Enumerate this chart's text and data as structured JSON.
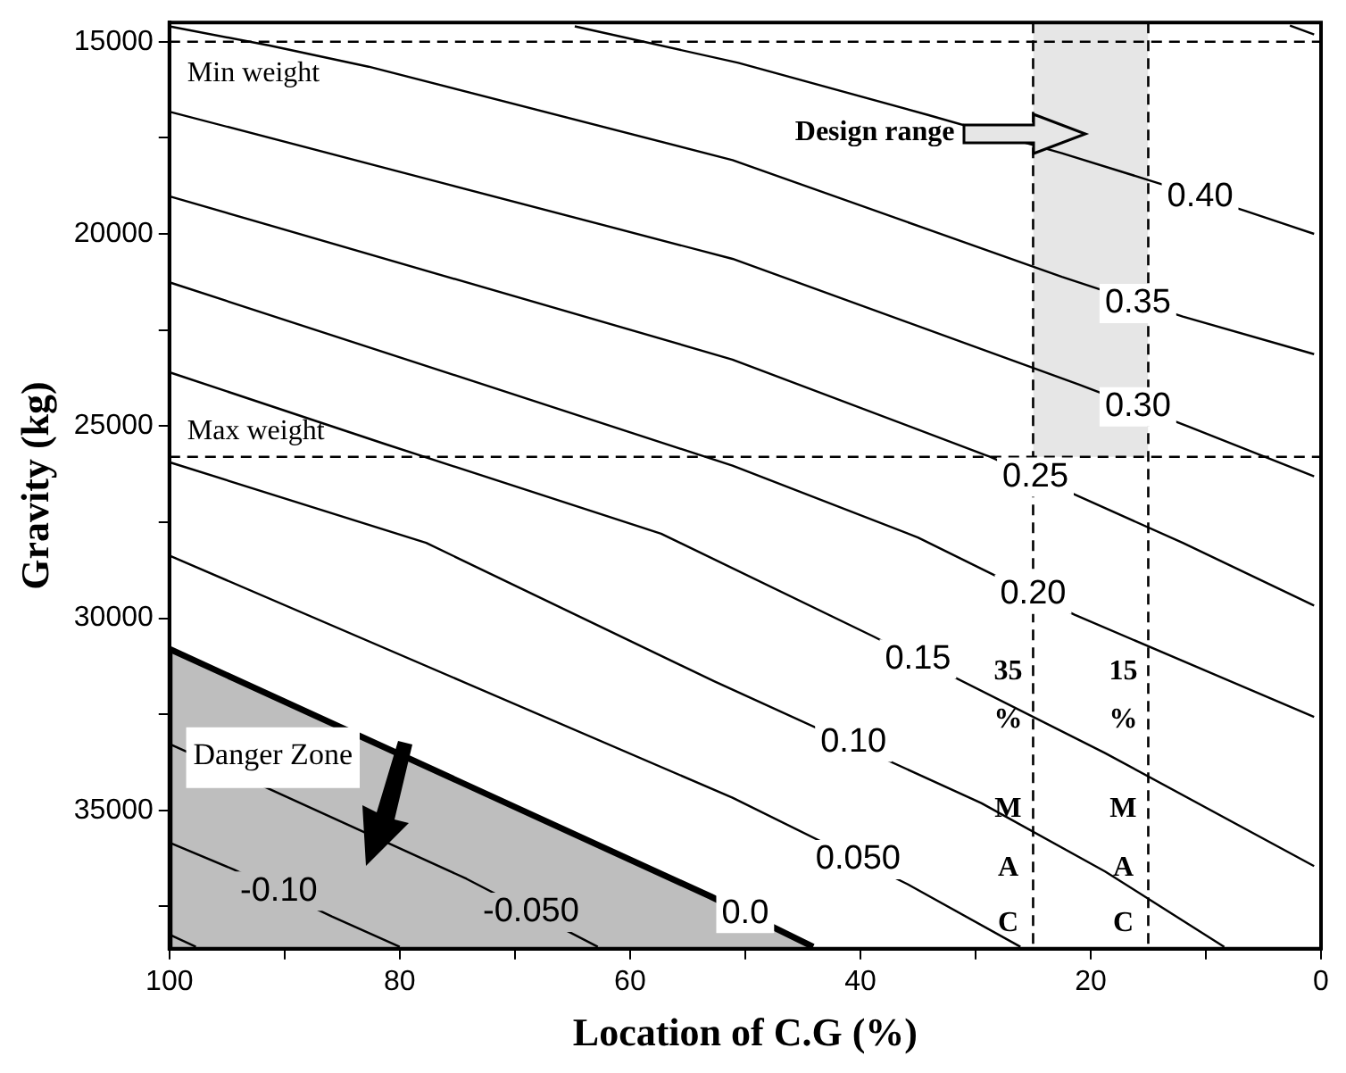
{
  "chart_data": {
    "type": "line",
    "xlabel": "Location of C.G (%)",
    "ylabel": "Gravity (kg)",
    "xlim": [
      100,
      0
    ],
    "xticks": [
      100,
      {
        "value": 90,
        "label": null
      },
      80,
      {
        "value": 70,
        "label": null
      },
      60,
      {
        "value": 50,
        "label": null
      },
      40,
      {
        "value": 30,
        "label": null
      },
      20,
      {
        "value": 10,
        "label": null
      },
      0
    ],
    "ylim": [
      38600,
      14500
    ],
    "yticks": [
      15000,
      {
        "value": 17500,
        "label": null
      },
      20000,
      {
        "value": 22500,
        "label": null
      },
      25000,
      {
        "value": 27500,
        "label": null
      },
      30000,
      {
        "value": 32500,
        "label": null
      },
      35000,
      {
        "value": 37500,
        "label": null
      }
    ],
    "series": [
      {
        "type": "area",
        "name": "Design range",
        "color": "#e6e6e6",
        "x": [
          25,
          15
        ],
        "values": [
          25800,
          25800
        ]
      },
      {
        "color": "#000000",
        "x": [
          2.7,
          0.6
        ],
        "values": [
          14580,
          14810
        ]
      },
      {
        "color": "#000000",
        "x": [
          64.8,
          50.6,
          34.2,
          22.5,
          13.9,
          6.6,
          0.6
        ],
        "values": [
          14600,
          15550,
          16900,
          17900,
          18700,
          19400,
          20000
        ]
      },
      {
        "color": "#000000",
        "x": [
          100,
          91.3,
          82.7,
          51.1,
          22.5,
          12,
          0.6
        ],
        "values": [
          14600,
          15100,
          15650,
          18080,
          21120,
          22150,
          23130
        ]
      },
      {
        "color": "#000000",
        "x": [
          100,
          76.1,
          51.1,
          21,
          11.6,
          0.6
        ],
        "values": [
          16820,
          18690,
          20650,
          23920,
          25000,
          26310
        ]
      },
      {
        "color": "#000000",
        "x": [
          100,
          51.1,
          28.75,
          21.4,
          12.0,
          0.6
        ],
        "values": [
          19020,
          23270,
          25800,
          26780,
          28040,
          29670
        ]
      },
      {
        "color": "#000000",
        "x": [
          100,
          51.1,
          35.0,
          21.4,
          0.6
        ],
        "values": [
          21260,
          26030,
          27900,
          29910,
          32570
        ]
      },
      {
        "color": "#000000",
        "x": [
          100,
          81.25,
          57.3,
          38.9,
          18.75,
          0.6
        ],
        "values": [
          23600,
          25470,
          27800,
          30470,
          33510,
          36450
        ]
      },
      {
        "color": "#000000",
        "x": [
          100,
          77.7,
          52.7,
          29.5,
          18.75,
          8.4
        ],
        "values": [
          25940,
          28040,
          31640,
          34810,
          36590,
          38550
        ]
      },
      {
        "color": "#000000",
        "x": [
          100,
          51.1,
          35.9,
          26.1
        ],
        "values": [
          28370,
          34670,
          36920,
          38550
        ]
      },
      {
        "type": "area",
        "color": "#bebebe",
        "x": [
          100,
          100,
          53.0,
          44.1
        ],
        "values": [
          38600,
          30800,
          37240,
          38550
        ]
      },
      {
        "color": "#000000",
        "x": [
          100,
          92.0,
          74.2,
          62.8
        ],
        "values": [
          33270,
          34350,
          36780,
          38550
        ]
      },
      {
        "color": "#000000",
        "x": [
          100,
          94.4,
          85.9,
          80.0
        ],
        "values": [
          35840,
          36540,
          37760,
          38550
        ]
      },
      {
        "color": "#000000",
        "x": [
          100,
          97.7
        ],
        "values": [
          38230,
          38550
        ]
      }
    ],
    "ref_lines": [
      {
        "axis": "y",
        "value": 15000,
        "label": "Min weight",
        "line_style": "dashed",
        "color": "#000000"
      },
      {
        "axis": "y",
        "value": 25800,
        "label": "Max weight",
        "line_style": "dashed",
        "color": "#000000"
      },
      {
        "axis": "x",
        "value": 25,
        "label": "35\n%\nM\nA\nC",
        "line_style": "dashed",
        "color": "#000000"
      },
      {
        "axis": "x",
        "value": 15,
        "label": "15\n%\nM\nA\nC",
        "line_style": "dashed",
        "color": "#000000"
      }
    ],
    "annotations": [
      {
        "text": "0.40",
        "x": 10.5,
        "y": 19030
      },
      {
        "text": "0.35",
        "x": 15.9,
        "y": 21810
      },
      {
        "text": "0.30",
        "x": 15.9,
        "y": 24500
      },
      {
        "text": "0.25",
        "x": 24.8,
        "y": 26330
      },
      {
        "text": "0.20",
        "x": 25.0,
        "y": 29380
      },
      {
        "text": "0.15",
        "x": 35.0,
        "y": 31060
      },
      {
        "text": "0.10",
        "x": 40.6,
        "y": 33230
      },
      {
        "text": "0.050",
        "x": 40.2,
        "y": 36280
      },
      {
        "text": "0.0",
        "x": 50.0,
        "y": 37680
      },
      {
        "text": "-0.050",
        "x": 68.6,
        "y": 37650
      },
      {
        "text": "-0.10",
        "x": 90.5,
        "y": 37100
      },
      "Danger Zone"
    ],
    "grid": false,
    "legend": "top"
  }
}
